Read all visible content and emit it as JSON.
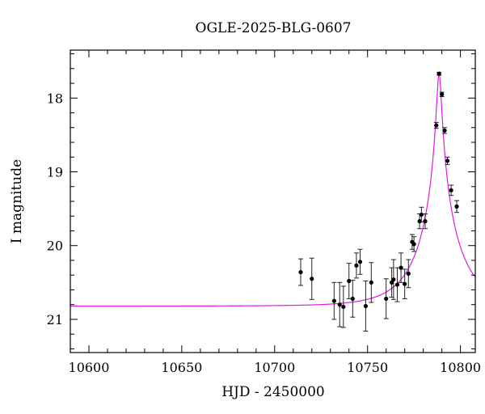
{
  "chart_data": {
    "type": "scatter",
    "title": "OGLE-2025-BLG-0607",
    "xlabel": "HJD - 2450000",
    "ylabel": "I magnitude",
    "xlim": [
      10590,
      10808
    ],
    "ylim": [
      21.45,
      17.35
    ],
    "y_inverted": true,
    "xticks_major": [
      10600,
      10650,
      10700,
      10750,
      10800
    ],
    "xticks_minor_step": 10,
    "yticks_major": [
      18,
      19,
      20,
      21
    ],
    "yticks_minor_step": 0.2,
    "grid": false,
    "legend": "none",
    "colors": {
      "model": "#e21be2",
      "points": "#000000",
      "frame": "#000000"
    },
    "series": [
      {
        "kind": "points_with_errorbars",
        "points": [
          {
            "x": 10714,
            "y": 20.36,
            "err": 0.18
          },
          {
            "x": 10720,
            "y": 20.45,
            "err": 0.28
          },
          {
            "x": 10732,
            "y": 20.75,
            "err": 0.25
          },
          {
            "x": 10735,
            "y": 20.8,
            "err": 0.3
          },
          {
            "x": 10737,
            "y": 20.83,
            "err": 0.28
          },
          {
            "x": 10740,
            "y": 20.48,
            "err": 0.24
          },
          {
            "x": 10742,
            "y": 20.72,
            "err": 0.25
          },
          {
            "x": 10744,
            "y": 20.27,
            "err": 0.17
          },
          {
            "x": 10746,
            "y": 20.22,
            "err": 0.17
          },
          {
            "x": 10749,
            "y": 20.82,
            "err": 0.34
          },
          {
            "x": 10752,
            "y": 20.5,
            "err": 0.27
          },
          {
            "x": 10760,
            "y": 20.72,
            "err": 0.27
          },
          {
            "x": 10763,
            "y": 20.5,
            "err": 0.2
          },
          {
            "x": 10764,
            "y": 20.46,
            "err": 0.27
          },
          {
            "x": 10766,
            "y": 20.53,
            "err": 0.23
          },
          {
            "x": 10768,
            "y": 20.3,
            "err": 0.2
          },
          {
            "x": 10770,
            "y": 20.52,
            "err": 0.2
          },
          {
            "x": 10772,
            "y": 20.38,
            "err": 0.19
          },
          {
            "x": 10774,
            "y": 19.95,
            "err": 0.1
          },
          {
            "x": 10775,
            "y": 19.98,
            "err": 0.1
          },
          {
            "x": 10778,
            "y": 19.67,
            "err": 0.1
          },
          {
            "x": 10779,
            "y": 19.58,
            "err": 0.1
          },
          {
            "x": 10781,
            "y": 19.67,
            "err": 0.1
          },
          {
            "x": 10787,
            "y": 18.37,
            "err": 0.04
          },
          {
            "x": 10788.5,
            "y": 17.67,
            "err": 0.02
          },
          {
            "x": 10790,
            "y": 17.95,
            "err": 0.03
          },
          {
            "x": 10791.5,
            "y": 18.44,
            "err": 0.04
          },
          {
            "x": 10793,
            "y": 18.85,
            "err": 0.05
          },
          {
            "x": 10795,
            "y": 19.25,
            "err": 0.07
          },
          {
            "x": 10798,
            "y": 19.47,
            "err": 0.08
          }
        ]
      },
      {
        "kind": "model_curve",
        "baseline_mag": 20.82,
        "t0": 10788.5,
        "tE": 22,
        "u0": 0.055
      }
    ]
  }
}
